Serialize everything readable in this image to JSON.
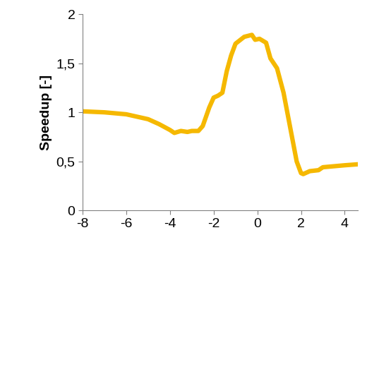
{
  "chart_data": {
    "type": "line",
    "y_label": "Speedup [-]",
    "x": [
      -8,
      -7,
      -6,
      -5,
      -4.5,
      -4,
      -3.8,
      -3.5,
      -3.2,
      -3,
      -2.7,
      -2.5,
      -2.2,
      -2,
      -1.8,
      -1.6,
      -1.4,
      -1.2,
      -1,
      -0.6,
      -0.25,
      -0.1,
      0.1,
      0.4,
      0.6,
      0.9,
      1.2,
      1.5,
      1.8,
      2.0,
      2.1,
      2.4,
      2.8,
      3.0,
      3.5,
      4.0,
      4.6
    ],
    "values": [
      1.01,
      1.0,
      0.98,
      0.93,
      0.88,
      0.82,
      0.79,
      0.81,
      0.8,
      0.81,
      0.81,
      0.86,
      1.05,
      1.15,
      1.17,
      1.2,
      1.42,
      1.58,
      1.7,
      1.77,
      1.79,
      1.74,
      1.75,
      1.71,
      1.55,
      1.45,
      1.2,
      0.85,
      0.5,
      0.38,
      0.37,
      0.4,
      0.41,
      0.44,
      0.45,
      0.46,
      0.47
    ],
    "color": "#f5b800",
    "xlim": [
      -8,
      4.6
    ],
    "xticks": [
      -8,
      -6,
      -4,
      -2,
      0,
      2,
      4
    ],
    "ylim": [
      0,
      2
    ],
    "yticks": [
      0,
      {
        "value": 0.5,
        "label": "0,5"
      },
      1,
      {
        "value": 1.5,
        "label": "1,5"
      },
      2
    ],
    "grid": false
  }
}
